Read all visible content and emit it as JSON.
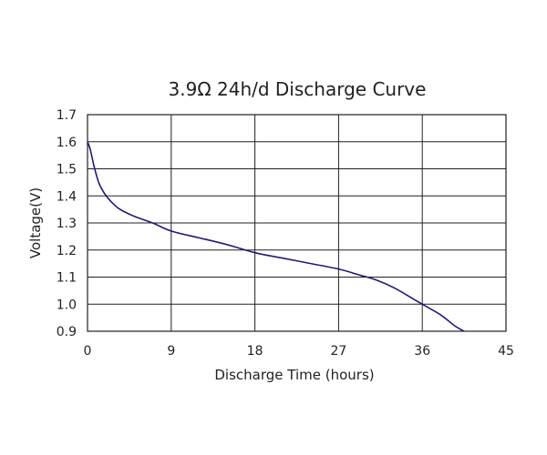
{
  "chart_data": {
    "type": "line",
    "title": "3.9Ω 24h/d Discharge Curve",
    "xlabel": "Discharge Time (hours)",
    "ylabel": "Voltage(V)",
    "xlim": [
      0,
      45
    ],
    "ylim": [
      0.9,
      1.7
    ],
    "xticks": [
      "0",
      "9",
      "18",
      "27",
      "36",
      "45"
    ],
    "yticks": [
      "1.7",
      "1.6",
      "1.5",
      "1.4",
      "1.3",
      "1.2",
      "1.1",
      "1.0",
      "0.9"
    ],
    "grid": true,
    "line_color": "#1f1a7a",
    "series": [
      {
        "x": [
          0,
          0.3,
          0.7,
          1.2,
          1.8,
          2.5,
          3.5,
          5,
          7,
          9,
          12,
          15,
          18,
          21,
          24,
          27,
          29,
          31,
          33,
          35,
          36.5,
          38,
          39.5,
          40.5
        ],
        "y": [
          1.6,
          1.57,
          1.51,
          1.45,
          1.41,
          1.38,
          1.35,
          1.325,
          1.3,
          1.27,
          1.245,
          1.22,
          1.19,
          1.17,
          1.15,
          1.13,
          1.11,
          1.09,
          1.06,
          1.02,
          0.99,
          0.96,
          0.92,
          0.9
        ]
      }
    ]
  }
}
